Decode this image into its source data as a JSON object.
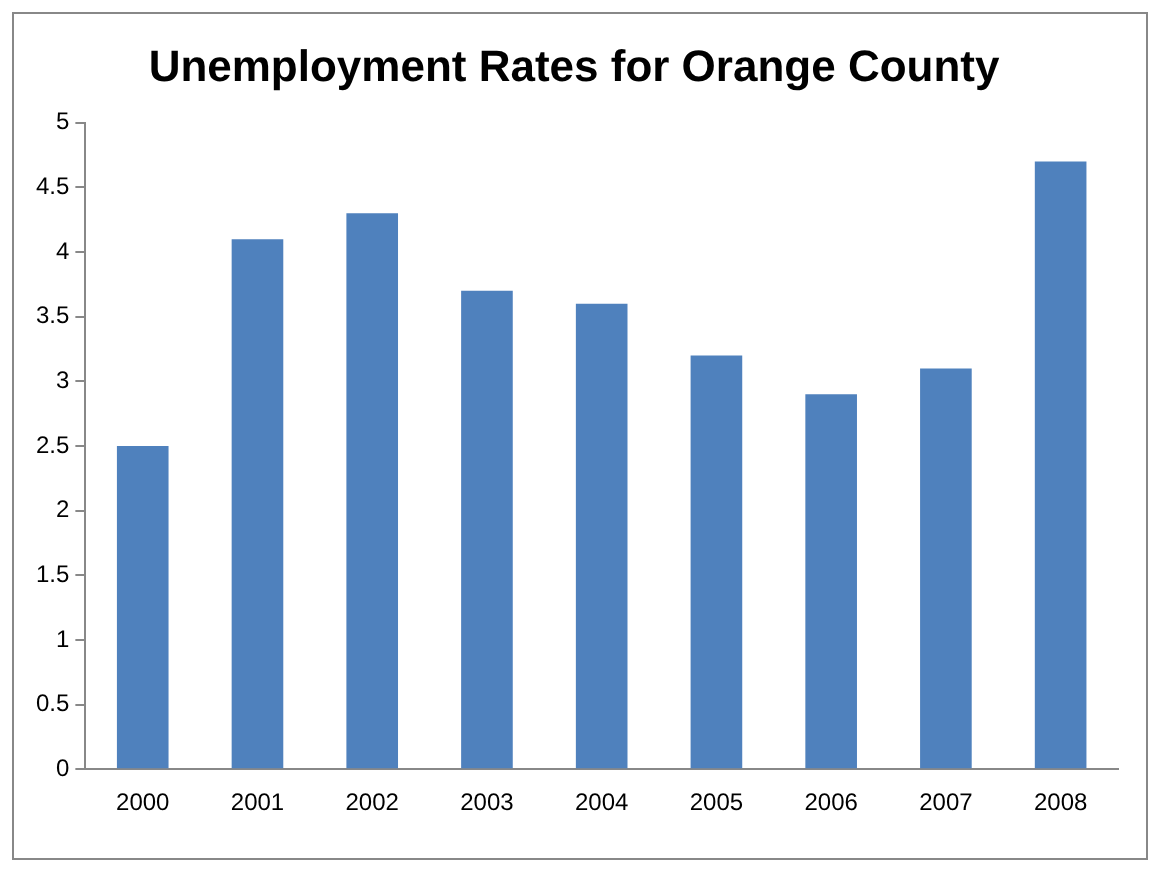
{
  "chart_data": {
    "type": "bar",
    "title": "Unemployment Rates for Orange County",
    "categories": [
      "2000",
      "2001",
      "2002",
      "2003",
      "2004",
      "2005",
      "2006",
      "2007",
      "2008"
    ],
    "values": [
      2.5,
      4.1,
      4.3,
      3.7,
      3.6,
      3.2,
      2.9,
      3.1,
      4.7
    ],
    "color": "#4f81bd",
    "ylim": [
      0,
      5
    ],
    "yticks": [
      0,
      0.5,
      1,
      1.5,
      2,
      2.5,
      3,
      3.5,
      4,
      4.5,
      5
    ],
    "grid": false,
    "legend": false
  }
}
